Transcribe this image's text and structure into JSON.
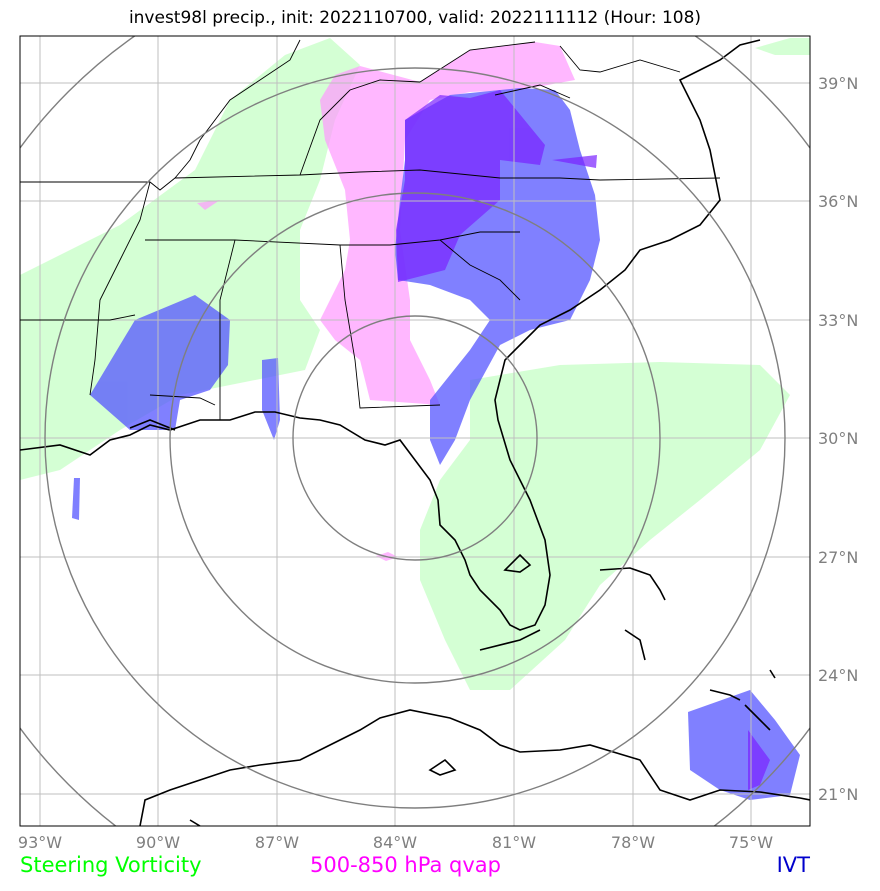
{
  "title": "invest98l precip., init: 2022110700, valid: 2022111112 (Hour: 108)",
  "lat_labels": [
    "39°N",
    "36°N",
    "33°N",
    "30°N",
    "27°N",
    "24°N",
    "21°N"
  ],
  "lon_labels": [
    "93°W",
    "90°W",
    "87°W",
    "84°W",
    "81°W",
    "78°W",
    "75°W"
  ],
  "legend": {
    "steering": {
      "label": "Steering Vorticity",
      "color": "#00ff00"
    },
    "qvap": {
      "label": "500-850 hPa qvap",
      "color": "#ff00ff"
    },
    "ivt": {
      "label": "IVT",
      "color": "#0000cc"
    }
  },
  "colors": {
    "steering_fill": "#ccffcc",
    "qvap_fill": "#ffaaff",
    "ivt_fill": "#6666ff",
    "ivt_core": "#7a33ff",
    "ring": "#7f7f7f",
    "grid": "#bfbfbf"
  },
  "map_extent": {
    "lon_min": -93.3,
    "lon_max": -73.4,
    "lat_min": 20.3,
    "lat_max": 40.2
  },
  "range_rings_center": {
    "lon": -84.0,
    "lat": 30.0
  }
}
